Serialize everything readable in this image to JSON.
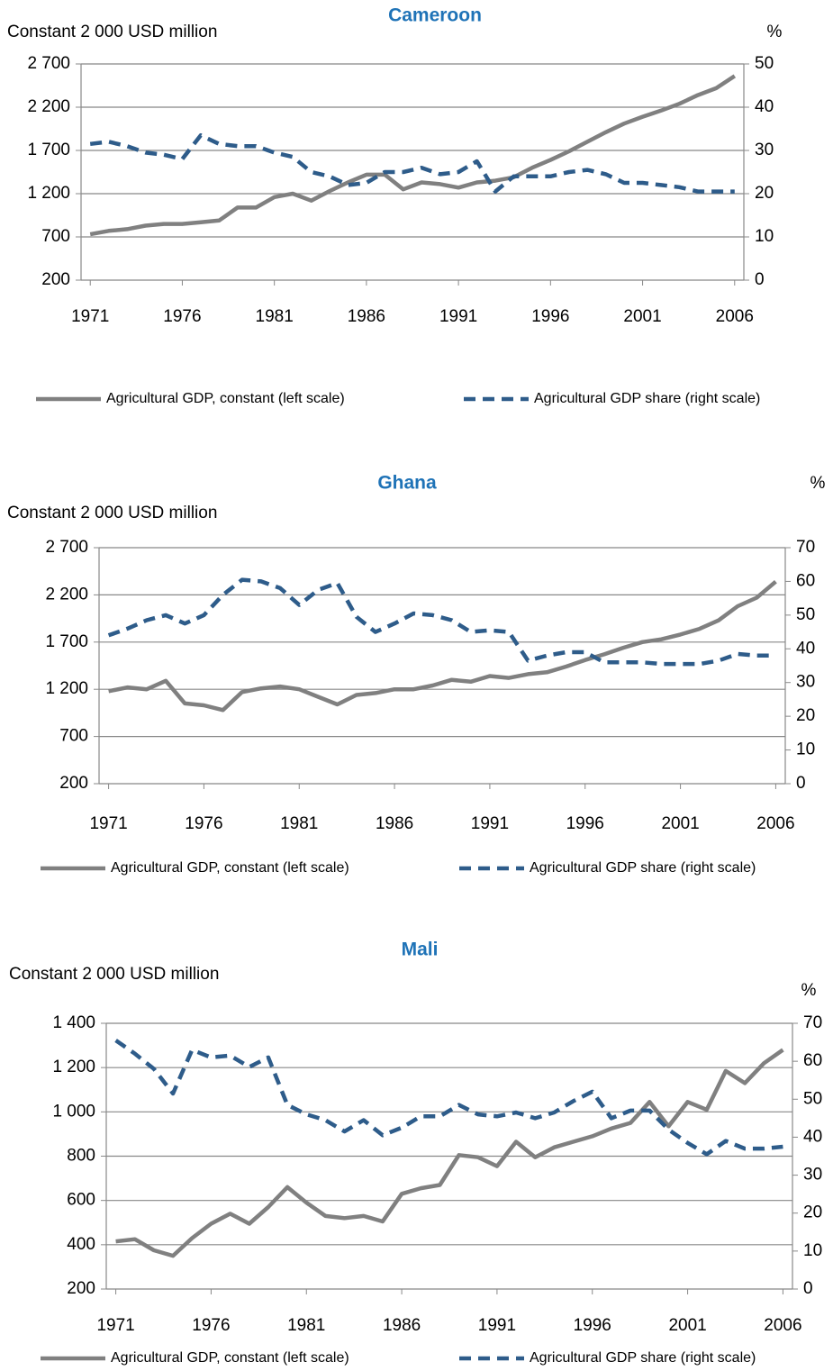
{
  "chart_data": [
    {
      "type": "line",
      "title": "Cameroon",
      "y_label": "Constant 2 000 USD million",
      "y2_label": "%",
      "x": [
        1971,
        1972,
        1973,
        1974,
        1975,
        1976,
        1977,
        1978,
        1979,
        1980,
        1981,
        1982,
        1983,
        1984,
        1985,
        1986,
        1987,
        1988,
        1989,
        1990,
        1991,
        1992,
        1993,
        1994,
        1995,
        1996,
        1997,
        1998,
        1999,
        2000,
        2001,
        2002,
        2003,
        2004,
        2005,
        2006
      ],
      "xlim": [
        1970.5,
        2006.5
      ],
      "xticks": [
        1971,
        1976,
        1981,
        1986,
        1991,
        1996,
        2001,
        2006
      ],
      "ylim": [
        200,
        2700
      ],
      "yticks": [
        200,
        700,
        {
          "value": 1200,
          "label": "1 200"
        },
        {
          "value": 1700,
          "label": "1 700"
        },
        {
          "value": 2200,
          "label": "2 200"
        },
        {
          "value": 2700,
          "label": "2 700"
        }
      ],
      "y2lim": [
        0,
        50
      ],
      "y2ticks": [
        0,
        10,
        20,
        30,
        40,
        50
      ],
      "grid": true,
      "legend": "bottom",
      "series": [
        {
          "name": "Agricultural GDP, constant (left scale)",
          "color": "#808080",
          "style": "solid",
          "values": [
            730,
            770,
            790,
            830,
            850,
            850,
            870,
            890,
            1040,
            1040,
            1160,
            1200,
            1120,
            1230,
            1330,
            1420,
            1420,
            1250,
            1330,
            1310,
            1270,
            1330,
            1350,
            1390,
            1500,
            1590,
            1690,
            1800,
            1910,
            2010,
            2090,
            2160,
            2240,
            2340,
            2420,
            2560
          ]
        },
        {
          "name": "Agricultural GDP share (right scale)",
          "color": "#2e5c8a",
          "style": "dashed",
          "axis": "y2",
          "values": [
            31.5,
            32,
            31,
            29.5,
            29,
            28,
            33.5,
            31.5,
            31,
            31,
            29.5,
            28.5,
            25,
            24,
            22,
            22.5,
            25,
            25,
            26,
            24.5,
            25,
            27.5,
            20.5,
            24,
            24,
            24,
            25,
            25.5,
            24.5,
            22.5,
            22.5,
            22,
            21.5,
            20.5,
            20.5,
            20.5
          ]
        }
      ]
    },
    {
      "type": "line",
      "title": "Ghana",
      "y_label": "Constant 2 000 USD million",
      "y2_label": "%",
      "x": [
        1971,
        1972,
        1973,
        1974,
        1975,
        1976,
        1977,
        1978,
        1979,
        1980,
        1981,
        1982,
        1983,
        1984,
        1985,
        1986,
        1987,
        1988,
        1989,
        1990,
        1991,
        1992,
        1993,
        1994,
        1995,
        1996,
        1997,
        1998,
        1999,
        2000,
        2001,
        2002,
        2003,
        2004,
        2005,
        2006
      ],
      "xlim": [
        1970.5,
        2006.5
      ],
      "xticks": [
        1971,
        1976,
        1981,
        1986,
        1991,
        1996,
        2001,
        2006
      ],
      "ylim": [
        200,
        2700
      ],
      "yticks": [
        200,
        700,
        {
          "value": 1200,
          "label": "1 200"
        },
        {
          "value": 1700,
          "label": "1 700"
        },
        {
          "value": 2200,
          "label": "2 200"
        },
        {
          "value": 2700,
          "label": "2 700"
        }
      ],
      "y2lim": [
        0,
        70
      ],
      "y2ticks": [
        0,
        10,
        20,
        30,
        40,
        50,
        60,
        70
      ],
      "grid": true,
      "legend": "bottom",
      "series": [
        {
          "name": "Agricultural GDP, constant (left scale)",
          "color": "#808080",
          "style": "solid",
          "values": [
            1180,
            1220,
            1200,
            1290,
            1050,
            1030,
            980,
            1170,
            1210,
            1230,
            1200,
            1120,
            1040,
            1140,
            1160,
            1200,
            1200,
            1240,
            1300,
            1280,
            1340,
            1320,
            1360,
            1380,
            1440,
            1510,
            1570,
            1640,
            1700,
            1730,
            1780,
            1840,
            1930,
            2080,
            2170,
            2340
          ]
        },
        {
          "name": "Agricultural GDP share (right scale)",
          "color": "#2e5c8a",
          "style": "dashed",
          "axis": "y2",
          "values": [
            44,
            46,
            48.5,
            50,
            47.5,
            50,
            56,
            60.5,
            60,
            58,
            53,
            57.5,
            59.5,
            49.5,
            45,
            47.5,
            50.5,
            50,
            48.5,
            45,
            45.5,
            45,
            36.5,
            38,
            39,
            39,
            36,
            36,
            36,
            35.5,
            35.5,
            35.5,
            36.5,
            38.5,
            38,
            38
          ]
        }
      ]
    },
    {
      "type": "line",
      "title": "Mali",
      "y_label": "Constant 2 000 USD million",
      "y2_label": "%",
      "x": [
        1971,
        1972,
        1973,
        1974,
        1975,
        1976,
        1977,
        1978,
        1979,
        1980,
        1981,
        1982,
        1983,
        1984,
        1985,
        1986,
        1987,
        1988,
        1989,
        1990,
        1991,
        1992,
        1993,
        1994,
        1995,
        1996,
        1997,
        1998,
        1999,
        2000,
        2001,
        2002,
        2003,
        2004,
        2005,
        2006
      ],
      "xlim": [
        1970.5,
        2006.5
      ],
      "xticks": [
        1971,
        1976,
        1981,
        1986,
        1991,
        1996,
        2001,
        2006
      ],
      "ylim": [
        200,
        1400
      ],
      "yticks": [
        200,
        400,
        600,
        800,
        {
          "value": 1000,
          "label": "1 000"
        },
        {
          "value": 1200,
          "label": "1 200"
        },
        {
          "value": 1400,
          "label": "1 400"
        }
      ],
      "y2lim": [
        0,
        70
      ],
      "y2ticks": [
        0,
        10,
        20,
        30,
        40,
        50,
        60,
        70
      ],
      "grid": true,
      "legend": "bottom",
      "series": [
        {
          "name": "Agricultural GDP, constant (left scale)",
          "color": "#808080",
          "style": "solid",
          "values": [
            415,
            425,
            375,
            350,
            430,
            495,
            540,
            495,
            570,
            660,
            590,
            530,
            520,
            530,
            505,
            630,
            655,
            670,
            805,
            795,
            755,
            865,
            795,
            840,
            865,
            890,
            925,
            950,
            1045,
            935,
            1045,
            1010,
            1185,
            1130,
            1220,
            1280
          ]
        },
        {
          "name": "Agricultural GDP share (right scale)",
          "color": "#2e5c8a",
          "style": "dashed",
          "axis": "y2",
          "values": [
            65.5,
            62,
            58,
            51.5,
            63,
            61,
            61.5,
            58.5,
            61,
            48.5,
            46,
            44.5,
            41.5,
            44.5,
            40.5,
            42.5,
            45.5,
            45.5,
            48.5,
            46,
            45.5,
            46.5,
            45,
            46.5,
            49.5,
            52,
            45,
            47,
            47,
            42,
            38.5,
            35.5,
            39,
            37,
            37,
            37.5
          ]
        }
      ]
    }
  ]
}
